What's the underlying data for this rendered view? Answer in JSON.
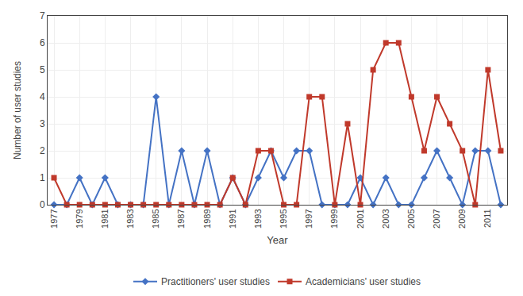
{
  "chart_data": {
    "type": "line",
    "x": [
      1977,
      1978,
      1979,
      1980,
      1981,
      1982,
      1983,
      1984,
      1985,
      1986,
      1987,
      1988,
      1989,
      1990,
      1991,
      1992,
      1993,
      1994,
      1995,
      1996,
      1997,
      1998,
      1999,
      2000,
      2001,
      2002,
      2003,
      2004,
      2005,
      2006,
      2007,
      2008,
      2009,
      2010,
      2011,
      2012
    ],
    "series": [
      {
        "name": "Practitioners' user studies",
        "color": "#4472C4",
        "marker": "diamond",
        "values": [
          0,
          0,
          1,
          0,
          1,
          0,
          0,
          0,
          4,
          0,
          2,
          0,
          2,
          0,
          1,
          0,
          1,
          2,
          1,
          2,
          2,
          0,
          0,
          0,
          1,
          0,
          1,
          0,
          0,
          1,
          2,
          1,
          0,
          2,
          2,
          0
        ]
      },
      {
        "name": "Academicians' user studies",
        "color": "#C0392B",
        "marker": "square",
        "values": [
          1,
          0,
          0,
          0,
          0,
          0,
          0,
          0,
          0,
          0,
          0,
          0,
          0,
          0,
          1,
          0,
          2,
          2,
          0,
          0,
          4,
          4,
          0,
          3,
          0,
          5,
          6,
          6,
          4,
          2,
          4,
          3,
          2,
          0,
          5,
          2
        ]
      }
    ],
    "xlabel": "Year",
    "ylabel": "Number of user studies",
    "xlim": [
      1976.5,
      2012.5
    ],
    "xticks": [
      1977,
      1979,
      1981,
      1983,
      1985,
      1987,
      1989,
      1991,
      1993,
      1995,
      1997,
      1999,
      2001,
      2003,
      2005,
      2007,
      2009,
      2011
    ],
    "ylim": [
      0,
      7
    ],
    "yticks": [
      0,
      1,
      2,
      3,
      4,
      5,
      6,
      7
    ],
    "grid": true,
    "legend": "bottom"
  }
}
